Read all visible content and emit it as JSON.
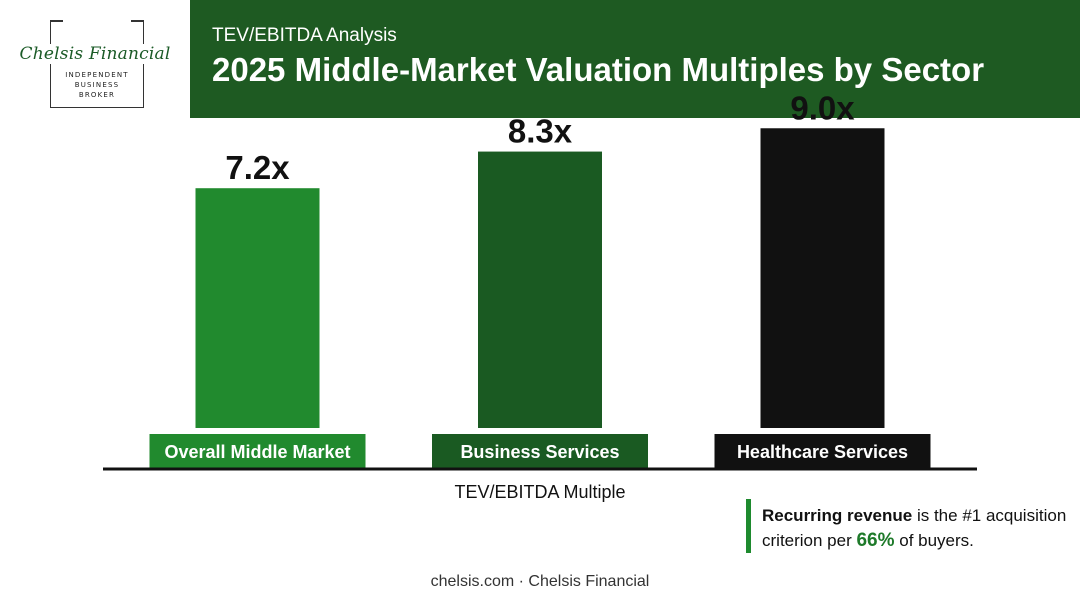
{
  "logo": {
    "name": "Chelsis Financial",
    "tagline_lines": [
      "INDEPENDENT",
      "BUSINESS",
      "BROKER"
    ]
  },
  "header": {
    "kicker": "TEV/EBITDA Analysis",
    "title": "2025 Middle-Market Valuation Multiples by Sector"
  },
  "chart_data": {
    "type": "bar",
    "categories": [
      "Overall Middle Market",
      "Business Services",
      "Healthcare Services"
    ],
    "values": [
      7.2,
      8.3,
      9.0
    ],
    "value_labels": [
      "7.2x",
      "8.3x",
      "9.0x"
    ],
    "colors": [
      "#218a2e",
      "#1a5a22",
      "#111111"
    ],
    "title": "2025 Middle-Market Valuation Multiples by Sector",
    "xlabel": "TEV/EBITDA Multiple",
    "ylabel": "",
    "ylim": [
      0,
      11.5
    ],
    "grid": false,
    "legend": "none"
  },
  "callout": {
    "bold": "Recurring revenue",
    "text1": " is the #1 acquisition criterion per ",
    "pct": "66%",
    "text2": " of buyers."
  },
  "footer": "chelsis.com · Chelsis Financial",
  "colors": {
    "brand_green": "#1e5a22",
    "accent_green": "#1e8a2e"
  }
}
